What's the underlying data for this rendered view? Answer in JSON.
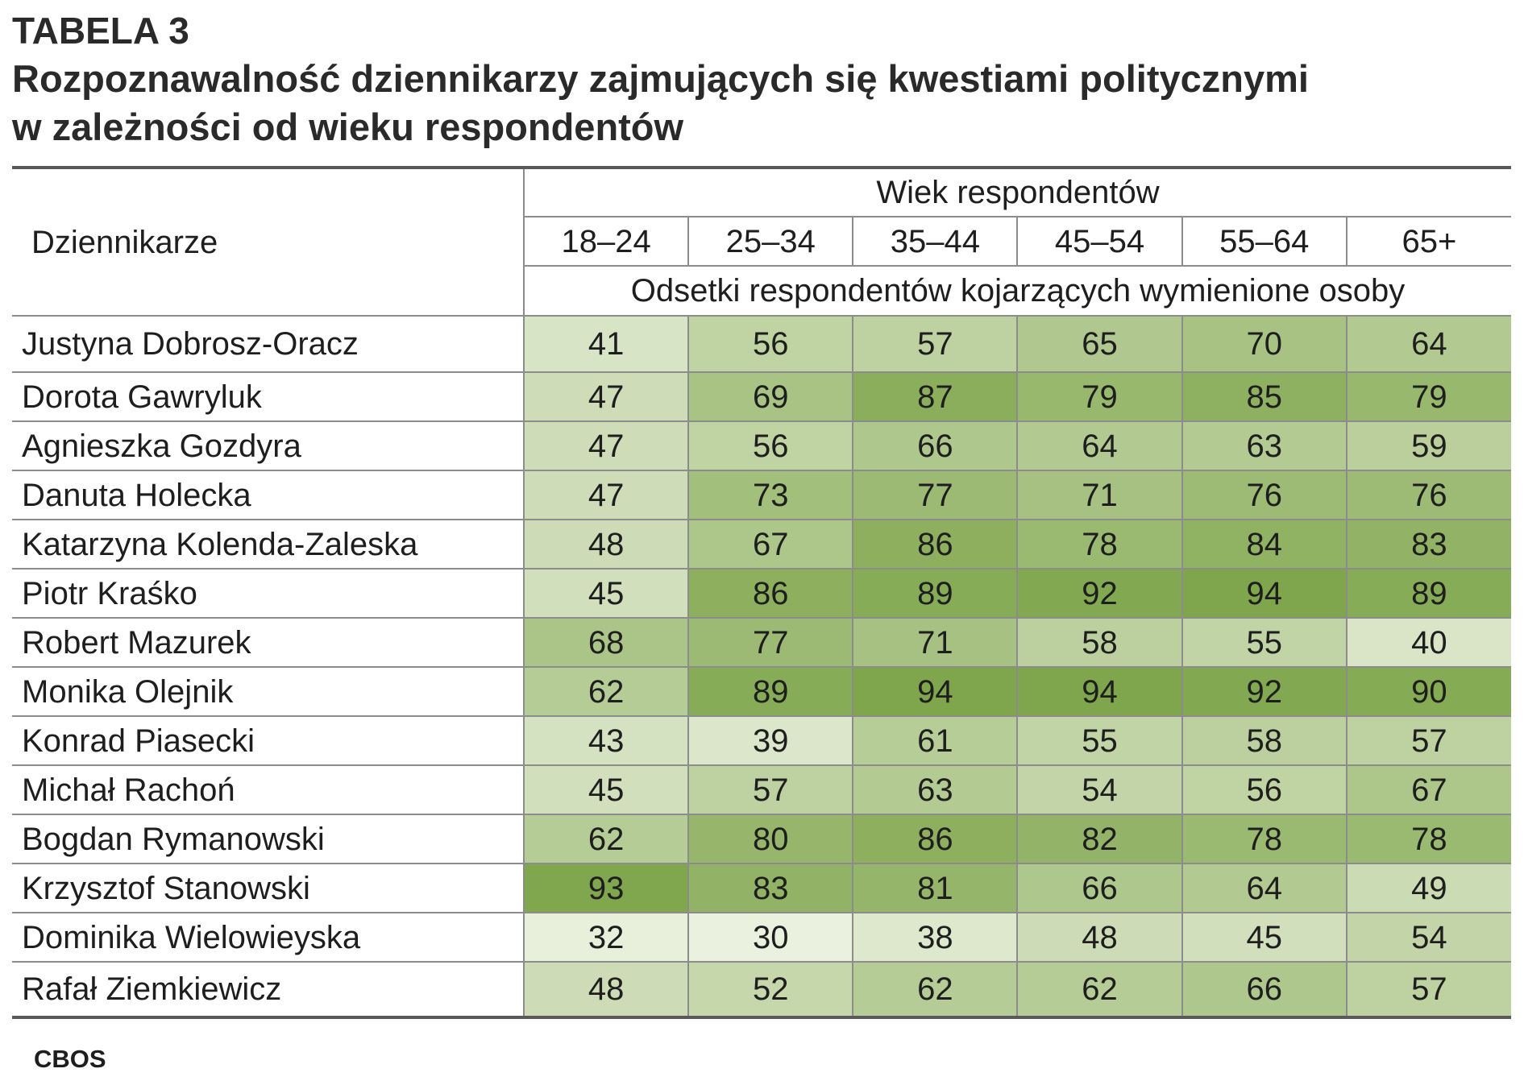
{
  "chart_data": {
    "type": "table",
    "label": "TABELA 3",
    "title_lines": [
      "Rozpoznawalność dziennikarzy zajmujących się kwestiami politycznymi",
      "w zależności od wieku respondentów"
    ],
    "row_header": "Dziennikarze",
    "column_group_label": "Wiek respondentów",
    "value_label": "Odsetki respondentów kojarzących wymienione osoby",
    "columns": [
      "18–24",
      "25–34",
      "35–44",
      "45–54",
      "55–64",
      "65+"
    ],
    "rows": [
      {
        "name": "Justyna Dobrosz-Oracz",
        "values": [
          41,
          56,
          57,
          65,
          70,
          64
        ]
      },
      {
        "name": "Dorota Gawryluk",
        "values": [
          47,
          69,
          87,
          79,
          85,
          79
        ]
      },
      {
        "name": "Agnieszka Gozdyra",
        "values": [
          47,
          56,
          66,
          64,
          63,
          59
        ]
      },
      {
        "name": "Danuta Holecka",
        "values": [
          47,
          73,
          77,
          71,
          76,
          76
        ]
      },
      {
        "name": "Katarzyna Kolenda-Zaleska",
        "values": [
          48,
          67,
          86,
          78,
          84,
          83
        ]
      },
      {
        "name": "Piotr Kraśko",
        "values": [
          45,
          86,
          89,
          92,
          94,
          89
        ]
      },
      {
        "name": "Robert Mazurek",
        "values": [
          68,
          77,
          71,
          58,
          55,
          40
        ]
      },
      {
        "name": "Monika Olejnik",
        "values": [
          62,
          89,
          94,
          94,
          92,
          90
        ]
      },
      {
        "name": "Konrad Piasecki",
        "values": [
          43,
          39,
          61,
          55,
          58,
          57
        ]
      },
      {
        "name": "Michał Rachoń",
        "values": [
          45,
          57,
          63,
          54,
          56,
          67
        ]
      },
      {
        "name": "Bogdan Rymanowski",
        "values": [
          62,
          80,
          86,
          82,
          78,
          78
        ]
      },
      {
        "name": "Krzysztof Stanowski",
        "values": [
          93,
          83,
          81,
          66,
          64,
          49
        ]
      },
      {
        "name": "Dominika Wielowieyska",
        "values": [
          32,
          30,
          38,
          48,
          45,
          54
        ]
      },
      {
        "name": "Rafał Ziemkiewicz",
        "values": [
          48,
          52,
          62,
          62,
          66,
          57
        ]
      }
    ],
    "source": "CBOS"
  },
  "colors": {
    "heat_low": "#ebf1df",
    "heat_high": "#7fa64c"
  }
}
